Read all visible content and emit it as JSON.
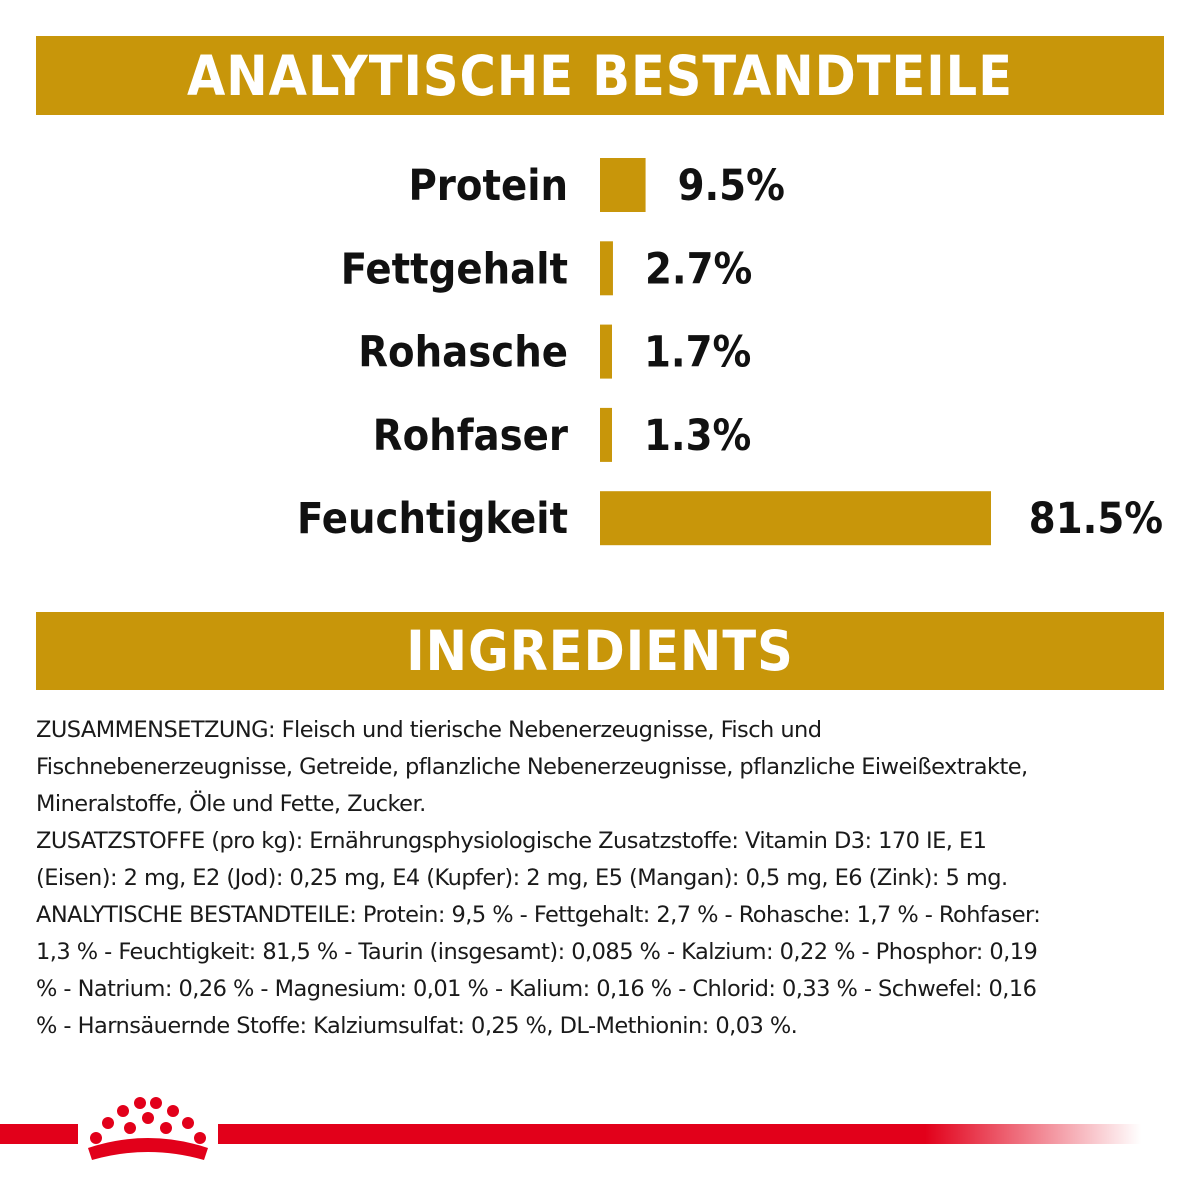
{
  "sections": {
    "analytics_title": "ANALYTISCHE BESTANDTEILE",
    "ingredients_title": "INGREDIENTS"
  },
  "chart_data": {
    "type": "bar",
    "orientation": "horizontal",
    "categories": [
      "Protein",
      "Fettgehalt",
      "Rohasche",
      "Rohfaser",
      "Feuchtigkeit"
    ],
    "values": [
      9.5,
      2.7,
      1.7,
      1.3,
      81.5
    ],
    "value_labels": [
      "9.5%",
      "2.7%",
      "1.7%",
      "1.3%",
      "81.5%"
    ],
    "unit": "%",
    "xlim": [
      0,
      81.5
    ],
    "grid": false,
    "bar_color": "#c8960a"
  },
  "ingredients": {
    "lines": [
      "ZUSAMMENSETZUNG: Fleisch und tierische Nebenerzeugnisse, Fisch und",
      "Fischnebenerzeugnisse, Getreide, pflanzliche Nebenerzeugnisse, pflanzliche Eiweißextrakte,",
      "Mineralstoffe, Öle und Fette, Zucker.",
      "ZUSATZSTOFFE (pro kg): Ernährungsphysiologische Zusatzstoffe: Vitamin D3: 170 IE, E1",
      "(Eisen): 2 mg, E2 (Jod): 0,25 mg, E4 (Kupfer): 2 mg, E5 (Mangan): 0,5 mg, E6 (Zink): 5 mg.",
      "ANALYTISCHE BESTANDTEILE: Protein: 9,5 % - Fettgehalt: 2,7 % - Rohasche: 1,7 % - Rohfaser:",
      "1,3 % - Feuchtigkeit: 81,5 % - Taurin (insgesamt): 0,085 % - Kalzium: 0,22 % - Phosphor: 0,19",
      "% - Natrium: 0,26 % - Magnesium: 0,01 % - Kalium: 0,16 % - Chlorid: 0,33 % - Schwefel: 0,16",
      "% - Harnsäuernde Stoffe: Kalziumsulfat: 0,25 %, DL-Methionin: 0,03 %."
    ]
  },
  "colors": {
    "accent": "#c8960a",
    "brand_red": "#e2001a"
  },
  "logo": {
    "icon": "crown-icon"
  }
}
